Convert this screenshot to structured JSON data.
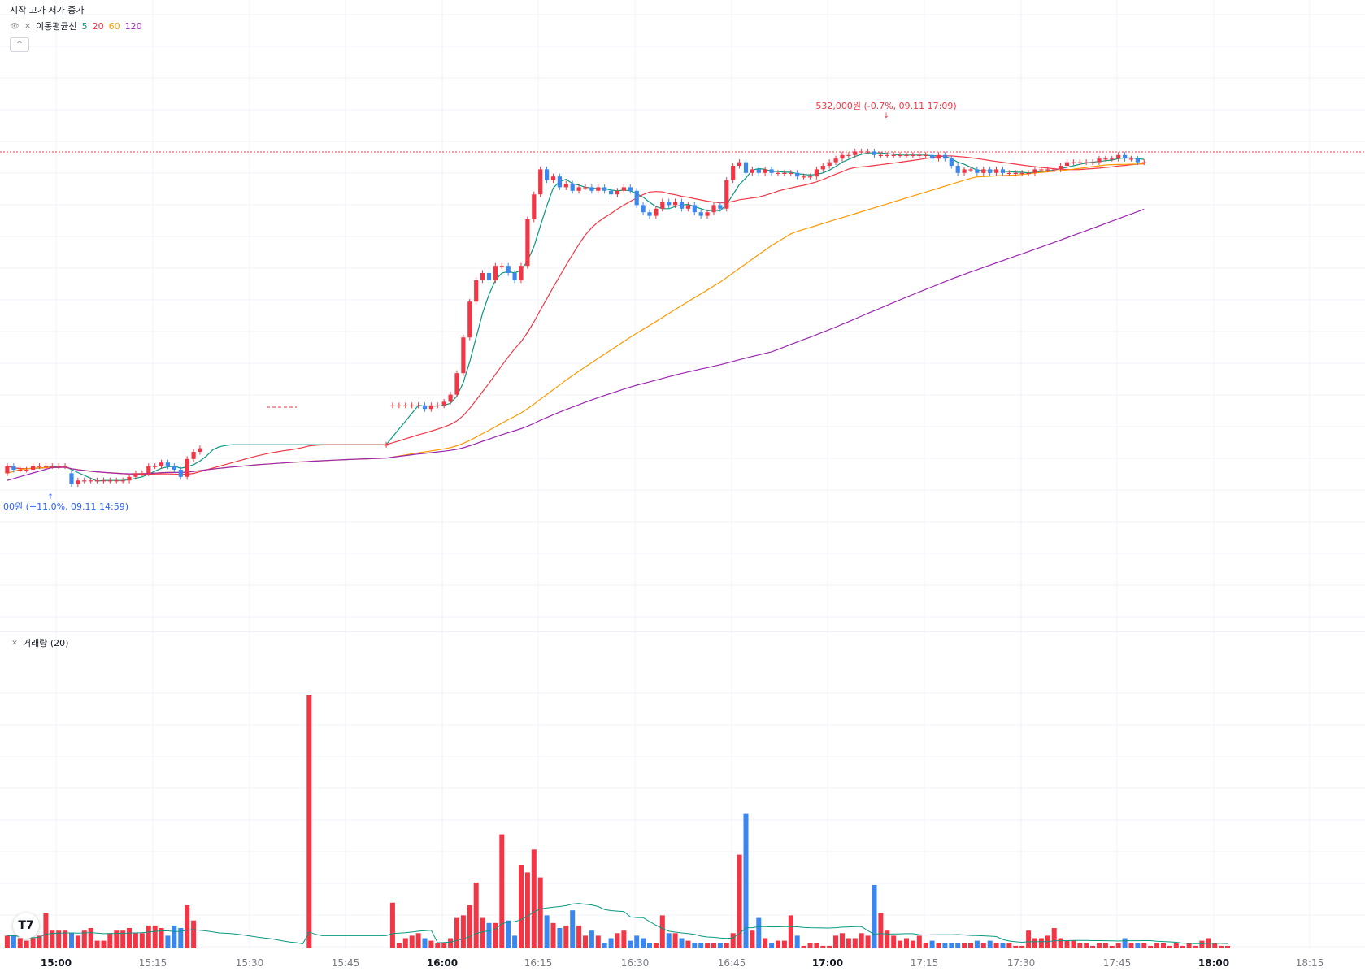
{
  "legend": {
    "ohlc_label": "시작 고가 저가 종가",
    "ma_title": "이동평균선",
    "ma_periods": [
      "5",
      "20",
      "60",
      "120"
    ],
    "ma_colors": [
      "#089981",
      "#f23645",
      "#ff9800",
      "#9c27b0"
    ],
    "volume_title": "거래량 (20)",
    "logo_text": "T7"
  },
  "colors": {
    "up": "#f23645",
    "down": "#2962ff",
    "down_bar": "#3a87f0",
    "grid": "#f0f3fa"
  },
  "chart_data": {
    "type": "candlestick",
    "x_tick_labels": [
      "15:00",
      "15:15",
      "15:30",
      "15:45",
      "16:00",
      "16:15",
      "16:30",
      "16:45",
      "17:00",
      "17:15",
      "17:30",
      "17:45",
      "18:00",
      "18:15"
    ],
    "bold_ticks": [
      "15:00",
      "16:00",
      "17:00",
      "18:00"
    ],
    "annotations": {
      "high": "532,000원 (-0.7%, 09.11 17:09)",
      "low": "00원 (+11.0%, 09.11 14:59)"
    },
    "price_rel": {
      "open": [
        0.04,
        0.06,
        0.05,
        0.05,
        0.05,
        0.06,
        0.06,
        0.06,
        0.06,
        0.06,
        0.04,
        0.01,
        0.02,
        0.02,
        0.02,
        0.02,
        0.02,
        0.02,
        0.02,
        0.02,
        0.03,
        0.04,
        0.04,
        0.06,
        0.06,
        0.07,
        0.06,
        0.05,
        0.03,
        0.08,
        0.1,
        0.11,
        0.12,
        0.12,
        0.12,
        0.12,
        0.12,
        0.12,
        0.12,
        0.12,
        0.12,
        0.12,
        0.12,
        0.12,
        0.12,
        0.12,
        0.12,
        0.12,
        0.12,
        0.12,
        0.12,
        0.12,
        0.12,
        0.12,
        0.12,
        0.12,
        0.12,
        0.12,
        0.12,
        0.12,
        0.23,
        0.23,
        0.23,
        0.23,
        0.23,
        0.23,
        0.22,
        0.23,
        0.23,
        0.24,
        0.26,
        0.32,
        0.42,
        0.52,
        0.58,
        0.6,
        0.58,
        0.62,
        0.62,
        0.6,
        0.58,
        0.62,
        0.75,
        0.82,
        0.89,
        0.86,
        0.87,
        0.84,
        0.85,
        0.83,
        0.84,
        0.84,
        0.83,
        0.84,
        0.83,
        0.82,
        0.83,
        0.84,
        0.83,
        0.79,
        0.77,
        0.76,
        0.78,
        0.8,
        0.79,
        0.8,
        0.78,
        0.79,
        0.77,
        0.76,
        0.77,
        0.79,
        0.78,
        0.86,
        0.9,
        0.91,
        0.88,
        0.89,
        0.88,
        0.89,
        0.88,
        0.88,
        0.88,
        0.88,
        0.87,
        0.87,
        0.87,
        0.89,
        0.9,
        0.91,
        0.92,
        0.93,
        0.93,
        0.94,
        0.94,
        0.94,
        0.93,
        0.93,
        0.93,
        0.93,
        0.93,
        0.93,
        0.93,
        0.93,
        0.93,
        0.92,
        0.93,
        0.92,
        0.9,
        0.88,
        0.89,
        0.89,
        0.88,
        0.89,
        0.88,
        0.89,
        0.88,
        0.88,
        0.88,
        0.88,
        0.88,
        0.89,
        0.89,
        0.89,
        0.89,
        0.9,
        0.91,
        0.91,
        0.91,
        0.91,
        0.91,
        0.92,
        0.92,
        0.92,
        0.93,
        0.92,
        0.92,
        0.91
      ],
      "close": [
        0.06,
        0.05,
        0.05,
        0.05,
        0.06,
        0.06,
        0.06,
        0.06,
        0.06,
        0.06,
        0.01,
        0.02,
        0.02,
        0.02,
        0.02,
        0.02,
        0.02,
        0.02,
        0.02,
        0.03,
        0.04,
        0.04,
        0.06,
        0.06,
        0.07,
        0.06,
        0.05,
        0.03,
        0.08,
        0.1,
        0.11,
        0.12,
        0.12,
        0.12,
        0.12,
        0.12,
        0.12,
        0.12,
        0.12,
        0.12,
        0.12,
        0.12,
        0.12,
        0.12,
        0.12,
        0.12,
        0.12,
        0.12,
        0.12,
        0.12,
        0.12,
        0.12,
        0.12,
        0.12,
        0.12,
        0.12,
        0.12,
        0.12,
        0.12,
        0.12,
        0.23,
        0.23,
        0.23,
        0.23,
        0.23,
        0.22,
        0.23,
        0.23,
        0.24,
        0.26,
        0.32,
        0.42,
        0.52,
        0.58,
        0.6,
        0.58,
        0.62,
        0.62,
        0.6,
        0.58,
        0.62,
        0.75,
        0.82,
        0.89,
        0.86,
        0.87,
        0.84,
        0.85,
        0.83,
        0.84,
        0.84,
        0.83,
        0.84,
        0.83,
        0.82,
        0.83,
        0.84,
        0.83,
        0.79,
        0.77,
        0.76,
        0.78,
        0.8,
        0.79,
        0.8,
        0.78,
        0.79,
        0.77,
        0.76,
        0.77,
        0.79,
        0.78,
        0.86,
        0.9,
        0.91,
        0.88,
        0.89,
        0.88,
        0.89,
        0.88,
        0.88,
        0.88,
        0.88,
        0.87,
        0.87,
        0.87,
        0.89,
        0.9,
        0.91,
        0.92,
        0.93,
        0.93,
        0.94,
        0.94,
        0.94,
        0.93,
        0.93,
        0.93,
        0.93,
        0.93,
        0.93,
        0.93,
        0.93,
        0.93,
        0.92,
        0.93,
        0.92,
        0.9,
        0.88,
        0.89,
        0.89,
        0.88,
        0.89,
        0.88,
        0.89,
        0.88,
        0.88,
        0.88,
        0.88,
        0.88,
        0.89,
        0.89,
        0.89,
        0.89,
        0.9,
        0.91,
        0.91,
        0.91,
        0.91,
        0.91,
        0.92,
        0.92,
        0.92,
        0.93,
        0.92,
        0.92,
        0.91,
        0.91
      ]
    },
    "volume_rel": [
      0.05,
      0.05,
      0.04,
      0.03,
      0.04,
      0.05,
      0.14,
      0.07,
      0.07,
      0.07,
      0.06,
      0.05,
      0.07,
      0.08,
      0.03,
      0.03,
      0.06,
      0.07,
      0.07,
      0.08,
      0.06,
      0.06,
      0.09,
      0.09,
      0.08,
      0.05,
      0.09,
      0.08,
      0.17,
      0.11,
      0.0,
      0.0,
      0.0,
      0.0,
      0.0,
      0.0,
      0.0,
      0.0,
      0.0,
      0.0,
      0.0,
      0.0,
      0.0,
      0.0,
      0.0,
      0.0,
      0.0,
      1.0,
      0.0,
      0.0,
      0.0,
      0.0,
      0.0,
      0.0,
      0.0,
      0.0,
      0.0,
      0.0,
      0.0,
      0.0,
      0.18,
      0.02,
      0.04,
      0.05,
      0.06,
      0.04,
      0.03,
      0.02,
      0.02,
      0.04,
      0.12,
      0.13,
      0.17,
      0.26,
      0.12,
      0.1,
      0.1,
      0.45,
      0.11,
      0.05,
      0.33,
      0.3,
      0.39,
      0.28,
      0.13,
      0.1,
      0.08,
      0.09,
      0.15,
      0.09,
      0.05,
      0.07,
      0.05,
      0.02,
      0.04,
      0.06,
      0.07,
      0.03,
      0.05,
      0.04,
      0.02,
      0.02,
      0.13,
      0.06,
      0.06,
      0.04,
      0.03,
      0.02,
      0.02,
      0.02,
      0.02,
      0.02,
      0.02,
      0.06,
      0.37,
      0.53,
      0.07,
      0.12,
      0.04,
      0.02,
      0.03,
      0.03,
      0.13,
      0.05,
      0.01,
      0.02,
      0.02,
      0.01,
      0.01,
      0.05,
      0.06,
      0.04,
      0.04,
      0.06,
      0.05,
      0.25,
      0.14,
      0.07,
      0.05,
      0.03,
      0.04,
      0.03,
      0.05,
      0.02,
      0.03,
      0.02,
      0.02,
      0.02,
      0.02,
      0.02,
      0.02,
      0.03,
      0.02,
      0.03,
      0.02,
      0.02,
      0.02,
      0.01,
      0.01,
      0.07,
      0.04,
      0.04,
      0.05,
      0.08,
      0.04,
      0.03,
      0.03,
      0.02,
      0.02,
      0.01,
      0.02,
      0.02,
      0.01,
      0.02,
      0.04,
      0.02,
      0.02,
      0.02,
      0.01,
      0.02,
      0.02,
      0.01,
      0.02,
      0.01,
      0.02,
      0.01,
      0.03,
      0.04,
      0.02,
      0.01,
      0.01
    ]
  }
}
